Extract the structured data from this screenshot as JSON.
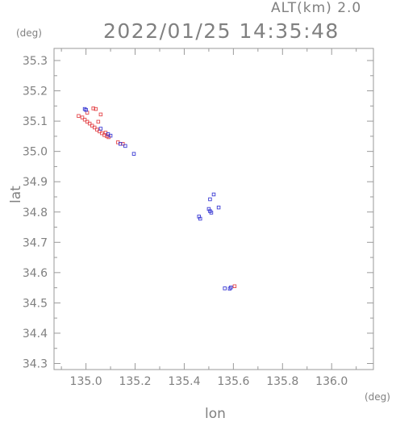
{
  "header": {
    "altitude": "ALT(km) 2.0",
    "timestamp": "2022/01/25 14:35:48"
  },
  "chart_data": {
    "type": "scatter",
    "title": "2022/01/25 14:35:48",
    "subtitle": "ALT(km) 2.0",
    "xlabel": "lon",
    "ylabel": "lat",
    "x_unit": "(deg)",
    "y_unit": "(deg)",
    "xlim": [
      134.87,
      136.17
    ],
    "ylim": [
      34.28,
      35.34
    ],
    "x_ticks": [
      "135.0",
      "135.2",
      "135.4",
      "135.6",
      "135.8",
      "136.0"
    ],
    "y_ticks": [
      "35.3",
      "35.2",
      "35.1",
      "35.0",
      "34.9",
      "34.8",
      "34.7",
      "34.6",
      "34.5",
      "34.4",
      "34.3"
    ],
    "grid": false,
    "colors": {
      "positive": "#e4474b",
      "negative": "#3c3cd4",
      "axis": "#9a9a9a"
    },
    "series": [
      {
        "color": "#e4474b",
        "points": [
          [
            134.97,
            35.117
          ],
          [
            134.985,
            35.112
          ],
          [
            134.995,
            35.105
          ],
          [
            135.005,
            35.098
          ],
          [
            135.015,
            35.092
          ],
          [
            135.025,
            35.085
          ],
          [
            135.035,
            35.079
          ],
          [
            135.045,
            35.072
          ],
          [
            135.055,
            35.066
          ],
          [
            135.065,
            35.06
          ],
          [
            135.075,
            35.054
          ],
          [
            135.085,
            35.05
          ],
          [
            135.092,
            35.047
          ],
          [
            135.03,
            35.142
          ],
          [
            135.04,
            35.14
          ],
          [
            135.06,
            35.122
          ],
          [
            135.05,
            35.098
          ],
          [
            135.08,
            35.062
          ],
          [
            135.13,
            35.03
          ],
          [
            135.15,
            35.025
          ],
          [
            135.005,
            35.128
          ],
          [
            135.605,
            34.555
          ]
        ]
      },
      {
        "color": "#3c3cd4",
        "points": [
          [
            134.995,
            35.14
          ],
          [
            135.0,
            35.137
          ],
          [
            135.06,
            35.075
          ],
          [
            135.09,
            35.057
          ],
          [
            135.1,
            35.052
          ],
          [
            135.14,
            35.025
          ],
          [
            135.16,
            35.018
          ],
          [
            135.195,
            34.992
          ],
          [
            135.46,
            34.785
          ],
          [
            135.465,
            34.778
          ],
          [
            135.5,
            34.81
          ],
          [
            135.505,
            34.803
          ],
          [
            135.51,
            34.798
          ],
          [
            135.505,
            34.842
          ],
          [
            135.52,
            34.858
          ],
          [
            135.54,
            34.815
          ],
          [
            135.565,
            34.548
          ],
          [
            135.59,
            34.551
          ],
          [
            135.585,
            34.547
          ]
        ]
      }
    ]
  }
}
